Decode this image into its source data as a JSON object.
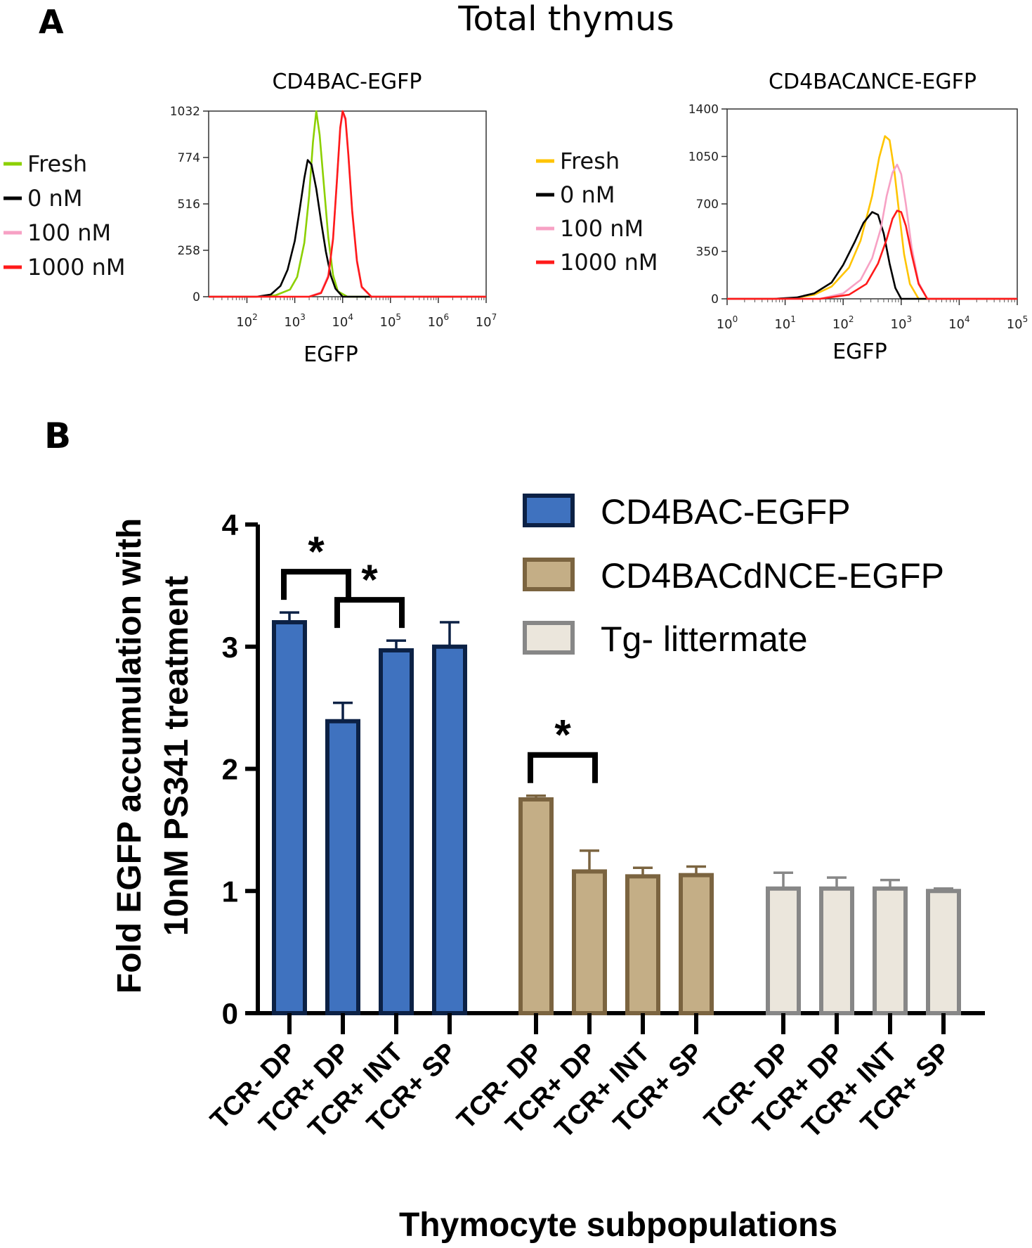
{
  "figure": {
    "panel_a_letter": "A",
    "panel_a_title": "Total thymus",
    "panel_b_letter": "B"
  },
  "chart_data": [
    {
      "type": "line",
      "id": "histogram-left",
      "title": "CD4BAC-EGFP",
      "xlabel": "EGFP",
      "xscale": "log",
      "xlim_log10": [
        1.2,
        7
      ],
      "ylim": [
        0,
        1032
      ],
      "y_ticks": [
        "0",
        "258",
        "516",
        "774",
        "1032"
      ],
      "y_tick_values": [
        0,
        258,
        516,
        774,
        1032
      ],
      "x_ticks": [
        {
          "base": "10",
          "exp": "2",
          "log": 2
        },
        {
          "base": "10",
          "exp": "3",
          "log": 3
        },
        {
          "base": "10",
          "exp": "4",
          "log": 4
        },
        {
          "base": "10",
          "exp": "5",
          "log": 5
        },
        {
          "base": "10",
          "exp": "6",
          "log": 6
        },
        {
          "base": "10",
          "exp": "7",
          "log": 7
        }
      ],
      "legend_position": "left",
      "series": [
        {
          "name": "Fresh",
          "color": "#8cd000",
          "x": [
            1.2,
            2.2,
            2.6,
            2.9,
            3.05,
            3.2,
            3.3,
            3.38,
            3.45,
            3.52,
            3.6,
            3.7,
            3.8,
            3.9,
            4.1,
            7
          ],
          "y": [
            0,
            0,
            8,
            40,
            110,
            300,
            560,
            860,
            1032,
            900,
            650,
            330,
            120,
            30,
            0,
            0
          ]
        },
        {
          "name": "0 nM",
          "color": "#000000",
          "x": [
            1.2,
            2.2,
            2.5,
            2.7,
            2.85,
            3.0,
            3.1,
            3.2,
            3.27,
            3.35,
            3.45,
            3.55,
            3.65,
            3.75,
            3.85,
            4.0,
            7
          ],
          "y": [
            0,
            0,
            12,
            60,
            150,
            310,
            480,
            660,
            760,
            735,
            600,
            420,
            250,
            120,
            45,
            0,
            0
          ]
        },
        {
          "name": "100 nM",
          "color": "#f7a1c4",
          "x": [
            1.2,
            3.3,
            3.55,
            3.7,
            3.8,
            3.88,
            3.95,
            4.0,
            4.06,
            4.12,
            4.2,
            4.3,
            4.4,
            4.6,
            7
          ],
          "y": [
            0,
            0,
            25,
            120,
            330,
            640,
            930,
            1020,
            980,
            780,
            470,
            190,
            50,
            0,
            0
          ]
        },
        {
          "name": "1000 nM",
          "color": "#ff1a1a",
          "x": [
            1.2,
            3.3,
            3.55,
            3.7,
            3.8,
            3.88,
            3.95,
            4.0,
            4.06,
            4.12,
            4.2,
            4.3,
            4.4,
            4.6,
            7
          ],
          "y": [
            0,
            0,
            20,
            110,
            320,
            640,
            940,
            1032,
            990,
            790,
            480,
            200,
            55,
            0,
            0
          ]
        }
      ]
    },
    {
      "type": "line",
      "id": "histogram-right",
      "title": "CD4BACΔNCE-EGFP",
      "xlabel": "EGFP",
      "xscale": "log",
      "xlim_log10": [
        0,
        5
      ],
      "ylim": [
        0,
        1400
      ],
      "y_ticks": [
        "0",
        "350",
        "700",
        "1050",
        "1400"
      ],
      "y_tick_values": [
        0,
        350,
        700,
        1050,
        1400
      ],
      "x_ticks": [
        {
          "base": "10",
          "exp": "0",
          "log": 0
        },
        {
          "base": "10",
          "exp": "1",
          "log": 1
        },
        {
          "base": "10",
          "exp": "2",
          "log": 2
        },
        {
          "base": "10",
          "exp": "3",
          "log": 3
        },
        {
          "base": "10",
          "exp": "4",
          "log": 4
        },
        {
          "base": "10",
          "exp": "5",
          "log": 5
        }
      ],
      "legend_position": "left",
      "series": [
        {
          "name": "Fresh",
          "color": "#ffc400",
          "x": [
            0,
            0.8,
            1.2,
            1.5,
            1.8,
            2.1,
            2.3,
            2.5,
            2.62,
            2.72,
            2.8,
            2.88,
            2.96,
            3.05,
            3.15,
            3.3,
            5
          ],
          "y": [
            0,
            0,
            8,
            30,
            90,
            230,
            430,
            760,
            1040,
            1200,
            1170,
            950,
            650,
            330,
            110,
            0,
            0
          ]
        },
        {
          "name": "0 nM",
          "color": "#000000",
          "x": [
            0,
            0.8,
            1.2,
            1.5,
            1.8,
            2.0,
            2.2,
            2.35,
            2.5,
            2.6,
            2.7,
            2.8,
            2.9,
            3.0,
            5
          ],
          "y": [
            0,
            0,
            10,
            40,
            120,
            250,
            420,
            560,
            640,
            620,
            480,
            260,
            80,
            0,
            0
          ]
        },
        {
          "name": "100 nM",
          "color": "#f7a1c4",
          "x": [
            0,
            1.6,
            2.0,
            2.3,
            2.5,
            2.65,
            2.75,
            2.85,
            2.93,
            3.0,
            3.08,
            3.18,
            3.3,
            3.45,
            5
          ],
          "y": [
            0,
            0,
            40,
            140,
            300,
            520,
            760,
            930,
            990,
            920,
            700,
            380,
            120,
            0,
            0
          ]
        },
        {
          "name": "1000 nM",
          "color": "#ff1a1a",
          "x": [
            0,
            1.6,
            2.1,
            2.4,
            2.6,
            2.75,
            2.85,
            2.93,
            3.0,
            3.08,
            3.18,
            3.3,
            3.45,
            5
          ],
          "y": [
            0,
            0,
            30,
            110,
            260,
            440,
            590,
            650,
            640,
            540,
            330,
            110,
            0,
            0
          ]
        }
      ]
    },
    {
      "type": "bar",
      "id": "bar-chart-b",
      "ylabel_line1": "Fold EGFP accumulation with",
      "ylabel_line2": "10nM PS341 treatment",
      "xlabel": "Thymocyte subpopulations",
      "ylim": [
        0,
        4
      ],
      "y_ticks": [
        "0",
        "1",
        "2",
        "3",
        "4"
      ],
      "y_tick_values": [
        0,
        1,
        2,
        3,
        4
      ],
      "categories": [
        "TCR- DP",
        "TCR+ DP",
        "TCR+ INT",
        "TCR+ SP"
      ],
      "significance_marker": "*",
      "series": [
        {
          "name": "CD4BAC-EGFP",
          "fill": "#3f72bf",
          "stroke": "#0c2145",
          "values": [
            3.2,
            2.39,
            2.97,
            3.0
          ],
          "errors": [
            0.08,
            0.15,
            0.08,
            0.2
          ]
        },
        {
          "name": "CD4BACdNCE-EGFP",
          "fill": "#c4ae86",
          "stroke": "#7b6440",
          "values": [
            1.75,
            1.16,
            1.12,
            1.13
          ],
          "errors": [
            0.03,
            0.17,
            0.07,
            0.07
          ]
        },
        {
          "name": "Tg- littermate",
          "fill": "#ebe6dc",
          "stroke": "#878787",
          "values": [
            1.02,
            1.02,
            1.02,
            1.0
          ],
          "errors": [
            0.13,
            0.09,
            0.07,
            0.02
          ]
        }
      ],
      "significance": [
        {
          "series": 0,
          "from": 0,
          "to": 1
        },
        {
          "series": 0,
          "from": 1,
          "to": 2
        },
        {
          "series": 1,
          "from": 0,
          "to": 1
        }
      ]
    }
  ]
}
